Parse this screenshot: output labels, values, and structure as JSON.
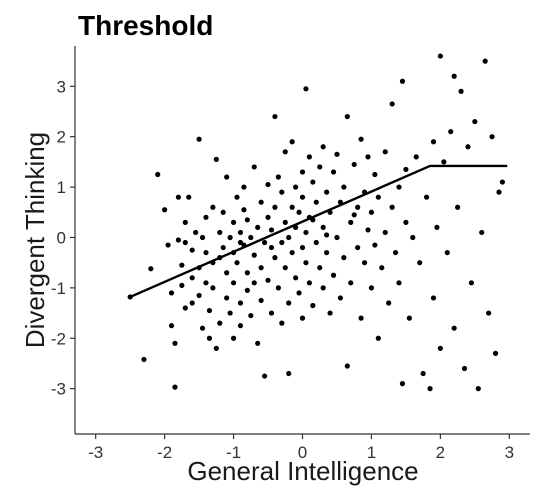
{
  "chart_data": {
    "type": "scatter",
    "title": "Threshold",
    "xlabel": "General Intelligence",
    "ylabel": "Divergent Thinking",
    "xlim": [
      -3.3,
      3.3
    ],
    "ylim": [
      -3.9,
      3.8
    ],
    "xticks": [
      -3,
      -2,
      -1,
      0,
      1,
      2,
      3
    ],
    "yticks": [
      -3,
      -2,
      -1,
      0,
      1,
      2,
      3
    ],
    "grid": false,
    "colors": {
      "points": "#000000",
      "fit_line": "#000000",
      "axis": "#333333"
    },
    "fit_line": {
      "points": [
        [
          -2.5,
          -1.18
        ],
        [
          1.85,
          1.42
        ],
        [
          2.97,
          1.42
        ]
      ]
    },
    "points": [
      [
        -2.5,
        -1.18
      ],
      [
        -2.3,
        -2.42
      ],
      [
        -2.2,
        -0.62
      ],
      [
        -2.1,
        1.25
      ],
      [
        -2.0,
        0.55
      ],
      [
        -1.95,
        -0.15
      ],
      [
        -1.9,
        -1.1
      ],
      [
        -1.9,
        -1.75
      ],
      [
        -1.85,
        -2.1
      ],
      [
        -1.85,
        -2.97
      ],
      [
        -1.8,
        0.8
      ],
      [
        -1.8,
        -0.05
      ],
      [
        -1.75,
        -0.55
      ],
      [
        -1.75,
        -0.95
      ],
      [
        -1.7,
        0.3
      ],
      [
        -1.7,
        -1.4
      ],
      [
        -1.7,
        -0.1
      ],
      [
        -1.65,
        0.8
      ],
      [
        -1.6,
        -0.25
      ],
      [
        -1.6,
        -0.8
      ],
      [
        -1.6,
        -1.3
      ],
      [
        -1.55,
        0.1
      ],
      [
        -1.5,
        -0.6
      ],
      [
        -1.5,
        -1.15
      ],
      [
        -1.5,
        1.95
      ],
      [
        -1.45,
        -1.8
      ],
      [
        -1.45,
        0.0
      ],
      [
        -1.4,
        -0.3
      ],
      [
        -1.4,
        -0.9
      ],
      [
        -1.4,
        0.4
      ],
      [
        -1.35,
        -2.0
      ],
      [
        -1.35,
        -1.45
      ],
      [
        -1.3,
        0.6
      ],
      [
        -1.3,
        -0.5
      ],
      [
        -1.3,
        -1.0
      ],
      [
        -1.25,
        -2.2
      ],
      [
        -1.25,
        1.55
      ],
      [
        -1.2,
        0.1
      ],
      [
        -1.2,
        -0.4
      ],
      [
        -1.2,
        -1.7
      ],
      [
        -1.15,
        -0.2
      ],
      [
        -1.15,
        0.5
      ],
      [
        -1.1,
        -1.2
      ],
      [
        -1.1,
        -0.7
      ],
      [
        -1.1,
        1.2
      ],
      [
        -1.05,
        0.0
      ],
      [
        -1.05,
        -1.5
      ],
      [
        -1.0,
        -0.3
      ],
      [
        -1.0,
        0.3
      ],
      [
        -1.0,
        -2.0
      ],
      [
        -1.0,
        -0.9
      ],
      [
        -0.95,
        0.8
      ],
      [
        -0.95,
        -0.5
      ],
      [
        -0.9,
        0.1
      ],
      [
        -0.9,
        -1.3
      ],
      [
        -0.9,
        -1.75
      ],
      [
        -0.85,
        0.55
      ],
      [
        -0.85,
        -0.15
      ],
      [
        -0.85,
        1.0
      ],
      [
        -0.8,
        -0.7
      ],
      [
        -0.8,
        -1.05
      ],
      [
        -0.8,
        0.35
      ],
      [
        -0.75,
        -1.55
      ],
      [
        -0.75,
        0.0
      ],
      [
        -0.7,
        1.4
      ],
      [
        -0.7,
        -0.35
      ],
      [
        -0.7,
        -0.9
      ],
      [
        -0.65,
        0.2
      ],
      [
        -0.65,
        -2.1
      ],
      [
        -0.6,
        0.7
      ],
      [
        -0.6,
        -0.6
      ],
      [
        -0.6,
        -1.25
      ],
      [
        -0.55,
        -2.75
      ],
      [
        -0.55,
        -0.1
      ],
      [
        -0.5,
        1.05
      ],
      [
        -0.5,
        0.4
      ],
      [
        -0.5,
        -0.85
      ],
      [
        -0.45,
        -1.5
      ],
      [
        -0.45,
        0.15
      ],
      [
        -0.4,
        2.4
      ],
      [
        -0.4,
        -0.4
      ],
      [
        -0.4,
        0.6
      ],
      [
        -0.35,
        1.2
      ],
      [
        -0.35,
        -1.0
      ],
      [
        -0.3,
        -0.1
      ],
      [
        -0.3,
        0.9
      ],
      [
        -0.3,
        -1.7
      ],
      [
        -0.25,
        1.7
      ],
      [
        -0.25,
        0.3
      ],
      [
        -0.25,
        -0.6
      ],
      [
        -0.2,
        -1.3
      ],
      [
        -0.2,
        0.0
      ],
      [
        -0.2,
        -2.7
      ],
      [
        -0.15,
        1.9
      ],
      [
        -0.15,
        0.6
      ],
      [
        -0.15,
        -0.3
      ],
      [
        -0.1,
        1.0
      ],
      [
        -0.1,
        -0.8
      ],
      [
        -0.1,
        0.2
      ],
      [
        -0.05,
        -1.1
      ],
      [
        -0.05,
        0.5
      ],
      [
        0.0,
        1.3
      ],
      [
        0.0,
        -0.2
      ],
      [
        0.0,
        -1.6
      ],
      [
        0.0,
        0.8
      ],
      [
        0.05,
        2.95
      ],
      [
        0.05,
        0.1
      ],
      [
        0.05,
        -0.5
      ],
      [
        0.1,
        1.6
      ],
      [
        0.1,
        -0.9
      ],
      [
        0.1,
        0.4
      ],
      [
        0.15,
        -1.35
      ],
      [
        0.15,
        1.1
      ],
      [
        0.2,
        -0.1
      ],
      [
        0.2,
        0.7
      ],
      [
        0.25,
        -0.6
      ],
      [
        0.25,
        1.4
      ],
      [
        0.3,
        0.2
      ],
      [
        0.3,
        -1.0
      ],
      [
        0.3,
        1.8
      ],
      [
        0.35,
        0.9
      ],
      [
        0.35,
        -0.3
      ],
      [
        0.4,
        -1.5
      ],
      [
        0.4,
        0.5
      ],
      [
        0.45,
        1.3
      ],
      [
        0.45,
        -0.75
      ],
      [
        0.5,
        0.0
      ],
      [
        0.5,
        1.65
      ],
      [
        0.55,
        -1.2
      ],
      [
        0.55,
        0.7
      ],
      [
        0.6,
        -0.4
      ],
      [
        0.6,
        1.0
      ],
      [
        0.65,
        2.4
      ],
      [
        0.65,
        -2.55
      ],
      [
        0.7,
        0.3
      ],
      [
        0.7,
        -0.9
      ],
      [
        0.75,
        1.45
      ],
      [
        0.8,
        -0.2
      ],
      [
        0.8,
        0.6
      ],
      [
        0.85,
        1.95
      ],
      [
        0.85,
        -1.6
      ],
      [
        0.9,
        0.9
      ],
      [
        0.9,
        -0.5
      ],
      [
        0.95,
        0.15
      ],
      [
        0.95,
        1.6
      ],
      [
        1.0,
        -1.0
      ],
      [
        1.0,
        0.5
      ],
      [
        1.05,
        1.25
      ],
      [
        1.05,
        -0.15
      ],
      [
        1.1,
        -2.0
      ],
      [
        1.1,
        0.8
      ],
      [
        1.15,
        -0.6
      ],
      [
        1.2,
        1.7
      ],
      [
        1.2,
        0.1
      ],
      [
        1.25,
        -1.3
      ],
      [
        1.3,
        0.6
      ],
      [
        1.3,
        2.65
      ],
      [
        1.35,
        -0.3
      ],
      [
        1.4,
        1.0
      ],
      [
        1.4,
        -0.9
      ],
      [
        1.45,
        3.1
      ],
      [
        1.45,
        -2.9
      ],
      [
        1.5,
        0.3
      ],
      [
        1.5,
        1.35
      ],
      [
        1.55,
        -1.6
      ],
      [
        1.6,
        0.0
      ],
      [
        1.65,
        1.6
      ],
      [
        1.7,
        -0.5
      ],
      [
        1.75,
        -2.7
      ],
      [
        1.8,
        0.8
      ],
      [
        1.85,
        -3.0
      ],
      [
        1.9,
        1.9
      ],
      [
        1.9,
        -1.2
      ],
      [
        1.95,
        0.2
      ],
      [
        2.0,
        3.6
      ],
      [
        2.0,
        -2.2
      ],
      [
        2.05,
        1.5
      ],
      [
        2.1,
        -0.3
      ],
      [
        2.15,
        2.1
      ],
      [
        2.2,
        3.2
      ],
      [
        2.2,
        -1.8
      ],
      [
        2.25,
        0.6
      ],
      [
        2.3,
        2.9
      ],
      [
        2.35,
        -2.6
      ],
      [
        2.4,
        1.8
      ],
      [
        2.45,
        -0.9
      ],
      [
        2.5,
        2.3
      ],
      [
        2.55,
        -3.0
      ],
      [
        2.6,
        0.1
      ],
      [
        2.65,
        3.5
      ],
      [
        2.7,
        -1.5
      ],
      [
        2.75,
        2.0
      ],
      [
        2.8,
        -2.3
      ],
      [
        2.85,
        0.9
      ],
      [
        2.9,
        1.1
      ],
      [
        0.35,
        0.05
      ],
      [
        -0.45,
        -0.2
      ],
      [
        0.75,
        0.45
      ],
      [
        -0.9,
        -0.1
      ],
      [
        0.15,
        0.35
      ]
    ]
  }
}
